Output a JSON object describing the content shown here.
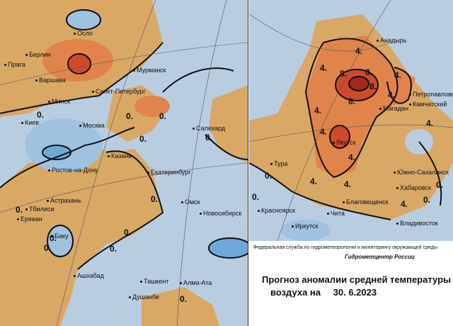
{
  "colors": {
    "negative": "#b9cde0",
    "weak_negative": "#9ec2e0",
    "strong_negative": "#6fa8d8",
    "positive": "#d9a865",
    "warm": "#e0844c",
    "hot": "#cf4a2a",
    "very_hot": "#a5271c"
  },
  "left_map": {
    "cities": [
      "Осло",
      "Берлин",
      "Прага",
      "Варшава",
      "Санкт-Петербург",
      "Мурманск",
      "Минск",
      "Киев",
      "Москва",
      "Ростов-на-Дону",
      "Казань",
      "Екатеринбург",
      "Астрахань",
      "Тбилиси",
      "Ереван",
      "Баку",
      "Омск",
      "Новосибирск",
      "Ашхабад",
      "Ташкент",
      "Алма-Ата",
      "Душанбе",
      "Салехард"
    ],
    "isolines": [
      "0.",
      "0.",
      "0.",
      "0.",
      "0.",
      "0.",
      "0.",
      "0.",
      "0.",
      "0.",
      "0.",
      "0."
    ]
  },
  "right_map": {
    "cities": [
      "Анадырь",
      "Петропавловск",
      "Камчатский",
      "Магадан",
      "Якутск",
      "Тура",
      "Южно-Сахалинск",
      "Хабаровск",
      "Благовещенск",
      "Красноярск",
      "Иркутск",
      "Чита",
      "Владивосток"
    ],
    "isolines": [
      "4.",
      "4.",
      "4.",
      "4.",
      "4.",
      "4.",
      "4.",
      "4.",
      "4.",
      "4.",
      "4.",
      "8.",
      "8.",
      "8.",
      "8.",
      "0.",
      "0.",
      "0.",
      "0."
    ]
  },
  "legend": {
    "agency": "Федеральная служба по гидрометеорологии и мониторингу окружающей среды",
    "center": "Гидрометцентр России",
    "title_line1": "Прогноз аномалии средней температуры",
    "title_line2_prefix": "воздуха на",
    "date": "30. 6.2023"
  }
}
